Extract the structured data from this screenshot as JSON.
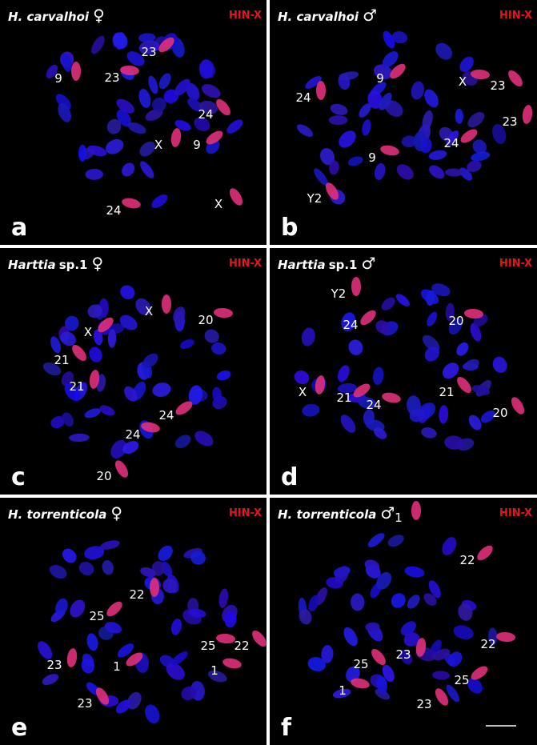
{
  "panels": [
    {
      "letter": "a",
      "species": "H. carvalhoi",
      "sex": "♀",
      "probe": "HIN-X",
      "labels": [
        "9",
        "23",
        "23",
        "24",
        "X",
        "9",
        "24",
        "X"
      ]
    },
    {
      "letter": "b",
      "species": "H. carvalhoi",
      "sex": "♂",
      "probe": "HIN-X",
      "labels": [
        "24",
        "9",
        "X",
        "23",
        "23",
        "24",
        "9",
        "Y2"
      ]
    },
    {
      "letter": "c",
      "species": "Harttia",
      "species_suffix": "sp.1",
      "sex": "♀",
      "probe": "HIN-X",
      "labels": [
        "X",
        "X",
        "20",
        "21",
        "21",
        "24",
        "24",
        "20"
      ]
    },
    {
      "letter": "d",
      "species": "Harttia",
      "species_suffix": "sp.1",
      "sex": "♂",
      "probe": "HIN-X",
      "labels": [
        "Y2",
        "24",
        "20",
        "21",
        "X",
        "21",
        "24",
        "20"
      ]
    },
    {
      "letter": "e",
      "species": "H. torrenticola",
      "sex": "♀",
      "probe": "HIN-X",
      "labels": [
        "22",
        "25",
        "25",
        "22",
        "23",
        "1",
        "1",
        "23"
      ]
    },
    {
      "letter": "f",
      "species": "H. torrenticola",
      "sex": "♂",
      "probe": "HIN-X",
      "labels": [
        "1",
        "22",
        "22",
        "25",
        "23",
        "25",
        "1",
        "23"
      ]
    }
  ]
}
